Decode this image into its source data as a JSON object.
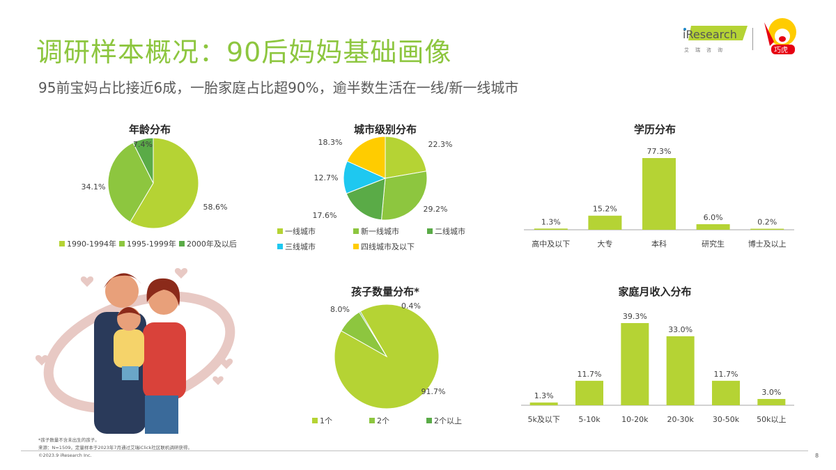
{
  "header": {
    "title": "调研样本概况：90后妈妈基础画像",
    "subtitle": "95前宝妈占比接近6成，一胎家庭占比超90%，逾半数生活在一线/新一线城市",
    "logo_iresearch": "iResearch 艾瑞咨询",
    "logo_partner": "巧虎"
  },
  "colors": {
    "light_green": "#b5d334",
    "green": "#8dc63f",
    "dark_green": "#5aab47",
    "blue": "#1ec8f0",
    "yellow": "#ffcc00",
    "title_green": "#8dc63f"
  },
  "chart_data": [
    {
      "type": "pie",
      "title": "年龄分布",
      "categories": [
        "1990-1994年",
        "1995-1999年",
        "2000年及以后"
      ],
      "values": [
        58.6,
        34.1,
        7.4
      ],
      "labels": [
        "58.6%",
        "34.1%",
        "7.4%"
      ],
      "colors": [
        "#b5d334",
        "#8dc63f",
        "#5aab47"
      ],
      "legend": "bottom"
    },
    {
      "type": "pie",
      "title": "城市级别分布",
      "categories": [
        "一线城市",
        "新一线城市",
        "二线城市",
        "三线城市",
        "四线城市及以下"
      ],
      "values": [
        22.3,
        29.2,
        17.6,
        12.7,
        18.3
      ],
      "labels": [
        "22.3%",
        "29.2%",
        "17.6%",
        "12.7%",
        "18.3%"
      ],
      "colors": [
        "#b5d334",
        "#8dc63f",
        "#5aab47",
        "#1ec8f0",
        "#ffcc00"
      ],
      "legend": "bottom"
    },
    {
      "type": "bar",
      "title": "学历分布",
      "categories": [
        "高中及以下",
        "大专",
        "本科",
        "研究生",
        "博士及以上"
      ],
      "values": [
        1.3,
        15.2,
        77.3,
        6.0,
        0.2
      ],
      "labels": [
        "1.3%",
        "15.2%",
        "77.3%",
        "6.0%",
        "0.2%"
      ],
      "color": "#b5d334"
    },
    {
      "type": "pie",
      "title": "孩子数量分布*",
      "categories": [
        "1个",
        "2个",
        "2个以上"
      ],
      "values": [
        91.7,
        8.0,
        0.4
      ],
      "labels": [
        "91.7%",
        "8.0%",
        "0.4%"
      ],
      "colors": [
        "#b5d334",
        "#8dc63f",
        "#5aab47"
      ],
      "legend": "bottom"
    },
    {
      "type": "bar",
      "title": "家庭月收入分布",
      "categories": [
        "5k及以下",
        "5-10k",
        "10-20k",
        "20-30k",
        "30-50k",
        "50k以上"
      ],
      "values": [
        1.3,
        11.7,
        39.3,
        33.0,
        11.7,
        3.0
      ],
      "labels": [
        "1.3%",
        "11.7%",
        "39.3%",
        "33.0%",
        "11.7%",
        "3.0%"
      ],
      "color": "#b5d334"
    }
  ],
  "footer": {
    "note": "*孩子数量不含未出生的孩子。",
    "source": "来源：N=1509，定量样本于2023年7月通过艾瑞iClick社区联机调研获得。",
    "copyright": "©2023.9 iResearch Inc.",
    "page": "8"
  }
}
